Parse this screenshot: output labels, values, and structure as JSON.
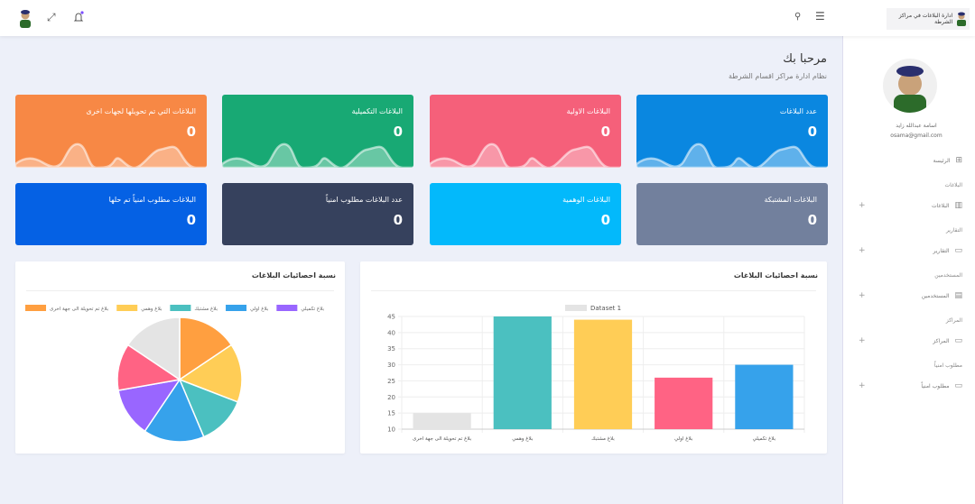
{
  "header": {
    "brand_title": "ادارة البلاغات في مراكز الشرطة",
    "icons": [
      "avatar",
      "fullscreen-icon",
      "bell-icon",
      "search-icon",
      "menu-icon"
    ]
  },
  "sidebar": {
    "user_name": "اسامة عبدالله زايد",
    "user_email": "osama@gmail.com",
    "items": [
      {
        "type": "link",
        "label": "الرئيسة",
        "icon": "grid-icon"
      },
      {
        "type": "section",
        "label": "البلاغات"
      },
      {
        "type": "link",
        "label": "البلاغات",
        "icon": "bar-chart-icon",
        "expand": "+"
      },
      {
        "type": "section",
        "label": "التقارير"
      },
      {
        "type": "link",
        "label": "التقارير",
        "icon": "calendar-icon",
        "expand": "+"
      },
      {
        "type": "section",
        "label": "المستخدمين"
      },
      {
        "type": "link",
        "label": "المستخدمين",
        "icon": "id-card-icon",
        "expand": "+"
      },
      {
        "type": "section",
        "label": "المراكز"
      },
      {
        "type": "link",
        "label": "المراكز",
        "icon": "calendar-icon",
        "expand": "+"
      },
      {
        "type": "section",
        "label": "مطلوب امنياً"
      },
      {
        "type": "link",
        "label": "مطلوب امنياً",
        "icon": "calendar-icon",
        "expand": "+"
      }
    ]
  },
  "main": {
    "welcome": "مرحبا بك",
    "subtitle": "نظام ادارة مراكز اقسام الشرطة",
    "cards": [
      {
        "title": "عدد البلاغات",
        "value": "0",
        "color": "#0a87e0"
      },
      {
        "title": "البلاغات الاولية",
        "value": "0",
        "color": "#f5607a"
      },
      {
        "title": "البلاغات التكميلية",
        "value": "0",
        "color": "#18a974"
      },
      {
        "title": "البلاغات التي تم تحويلها لجهات اخرى",
        "value": "0",
        "color": "#f78845"
      },
      {
        "title": "البلاغات المشتبكة",
        "value": "0",
        "color": "#72809d"
      },
      {
        "title": "البلاغات الوهمية",
        "value": "0",
        "color": "#03b9fb"
      },
      {
        "title": "عدد البلاغات مطلوب امنياً",
        "value": "0",
        "color": "#36415d"
      },
      {
        "title": "البلاغات مطلوب امنياً تم حلها",
        "value": "0",
        "color": "#0561e4"
      }
    ]
  },
  "chart_data": [
    {
      "type": "bar",
      "title": "نسبة احصائيات البلاغات",
      "legend": [
        "Dataset 1"
      ],
      "legend_position": "top",
      "categories": [
        "بلاغ تم تحويلة الى جهة اخرى",
        "بلاغ وهمي",
        "بلاغ مشتبك",
        "بلاغ اولي",
        "بلاغ تكميلي"
      ],
      "series": [
        {
          "name": "Dataset 1",
          "values": [
            15,
            45,
            44,
            26,
            30
          ]
        }
      ],
      "colors": [
        "#e4e4e4",
        "#4bc0c0",
        "#ffcd56",
        "#ff6384",
        "#36a2eb"
      ],
      "ylim": [
        10,
        45
      ],
      "yticks": [
        10,
        15,
        20,
        25,
        30,
        35,
        40,
        45
      ],
      "grid": true
    },
    {
      "type": "pie",
      "title": "نسبة احصائيات البلاغات",
      "legend_position": "top",
      "legend": [
        {
          "label": "بلاغ تكميلي",
          "color": "#9966ff"
        },
        {
          "label": "بلاغ اولي",
          "color": "#36a2eb"
        },
        {
          "label": "بلاغ مشتبك",
          "color": "#4bc0c0"
        },
        {
          "label": "بلاغ وهمي",
          "color": "#ffcd56"
        },
        {
          "label": "بلاغ تم تحويلة الى جهة اخرى",
          "color": "#ff9f40"
        }
      ],
      "values": [
        15.6,
        15.3,
        12.8,
        15.8,
        12.8,
        12.2,
        15.6
      ],
      "colors": [
        "#ff9f40",
        "#ffcd56",
        "#4bc0c0",
        "#36a2eb",
        "#9966ff",
        "#ff6384",
        "#e4e4e4"
      ]
    }
  ]
}
